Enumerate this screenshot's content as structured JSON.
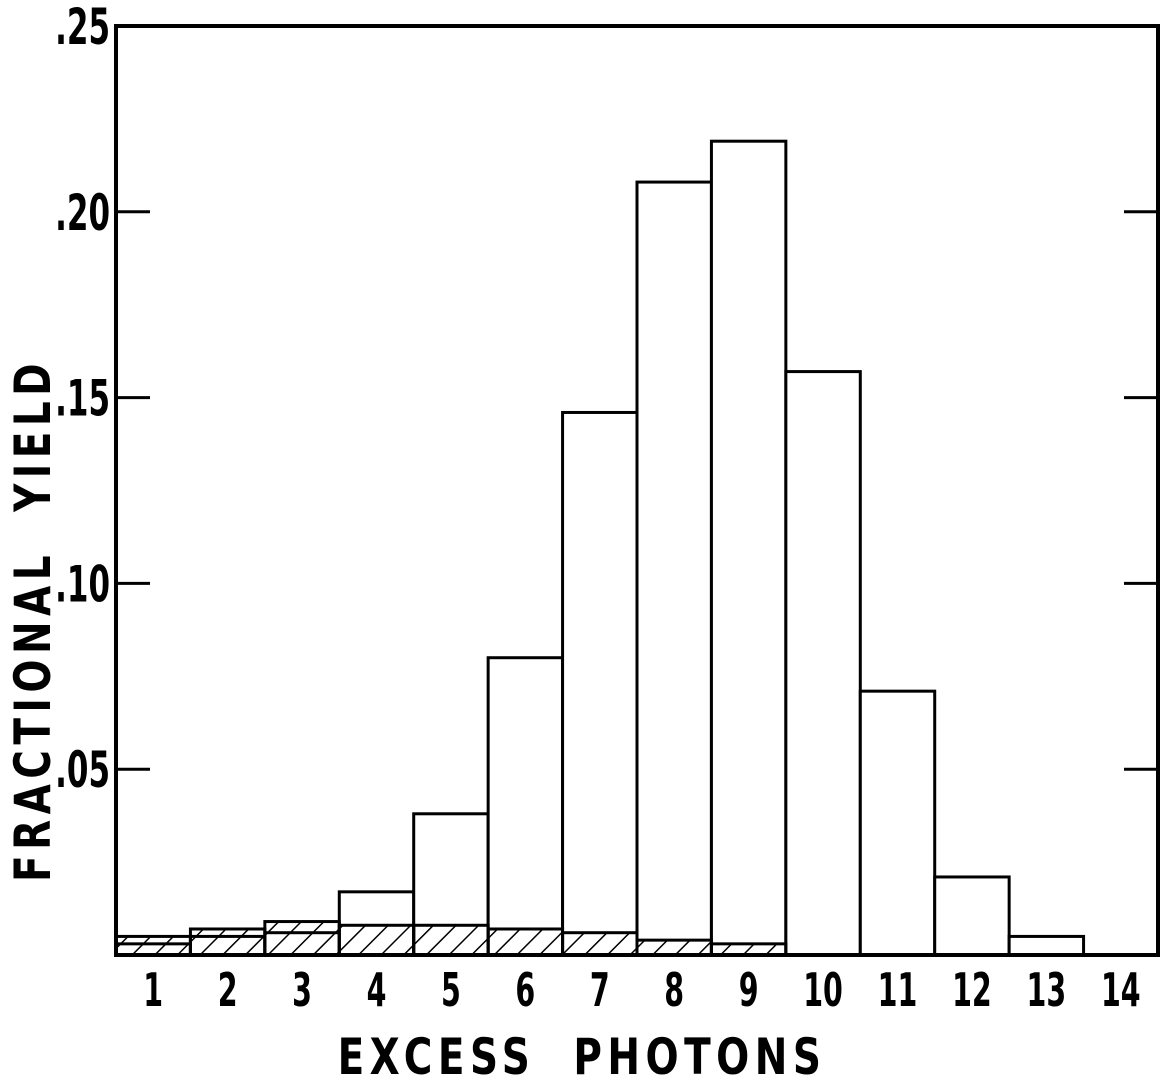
{
  "chart_data": {
    "type": "bar",
    "title": "",
    "xlabel": "EXCESS  PHOTONS",
    "ylabel": "FRACTIONAL  YIELD",
    "categories": [
      "1",
      "2",
      "3",
      "4",
      "5",
      "6",
      "7",
      "8",
      "9",
      "10",
      "11",
      "12",
      "13",
      "14"
    ],
    "ylim": [
      0,
      0.25
    ],
    "y_ticks": [
      {
        "value": 0.05,
        "label": ".05"
      },
      {
        "value": 0.1,
        "label": ".10"
      },
      {
        "value": 0.15,
        "label": ".15"
      },
      {
        "value": 0.2,
        "label": ".20"
      },
      {
        "value": 0.25,
        "label": ".25"
      }
    ],
    "series": [
      {
        "style": "open",
        "values": [
          0.003,
          0.005,
          0.006,
          0.017,
          0.038,
          0.08,
          0.146,
          0.208,
          0.219,
          0.157,
          0.071,
          0.021,
          0.005,
          0.0
        ]
      },
      {
        "style": "hatched",
        "values": [
          0.005,
          0.007,
          0.009,
          0.008,
          0.008,
          0.007,
          0.006,
          0.004,
          0.003,
          0.0,
          0.0,
          0.0,
          0.0,
          0.0
        ]
      }
    ],
    "grid": false,
    "legend": "none",
    "colors": {
      "stroke": "#000000",
      "fill": "#ffffff"
    }
  }
}
